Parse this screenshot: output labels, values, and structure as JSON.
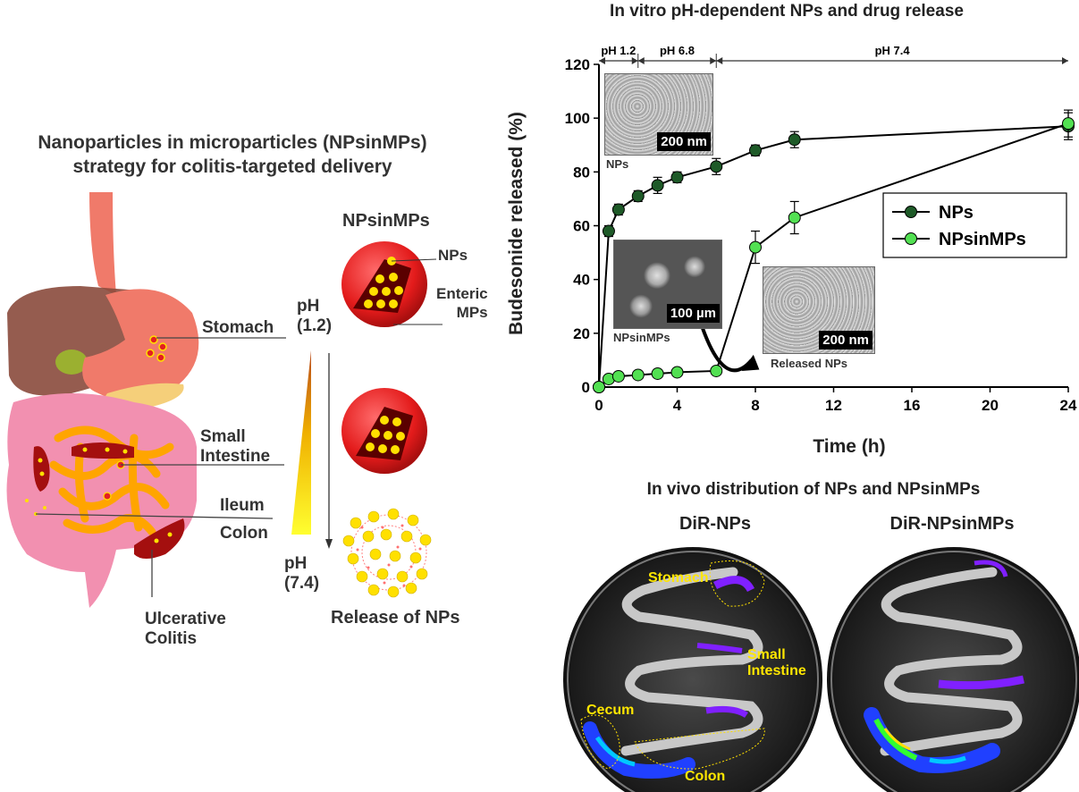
{
  "left": {
    "title_line1": "Nanoparticles in microparticles (NPsinMPs)",
    "title_line2": "strategy for colitis-targeted delivery",
    "organs": {
      "stomach": "Stomach",
      "small_intestine_line1": "Small",
      "small_intestine_line2": "Intestine",
      "ileum": "Ileum",
      "colon": "Colon",
      "ulcerative_line1": "Ulcerative",
      "ulcerative_line2": "Colitis"
    },
    "ph_top_line1": "pH",
    "ph_top_line2": "(1.2)",
    "ph_bottom_line1": "pH",
    "ph_bottom_line2": "(7.4)",
    "particle_title": "NPsinMPs",
    "particle_nps": "NPs",
    "particle_enteric_line1": "Enteric",
    "particle_enteric_line2": "MPs",
    "release_label": "Release of NPs"
  },
  "chart_data": {
    "type": "line",
    "title": "In vitro pH-dependent NPs and drug release",
    "xlabel": "Time (h)",
    "ylabel": "Budesonide released (%)",
    "xlim": [
      0,
      24
    ],
    "ylim": [
      0,
      120
    ],
    "xticks": [
      0,
      4,
      8,
      12,
      16,
      20,
      24
    ],
    "yticks": [
      0,
      20,
      40,
      60,
      80,
      100,
      120
    ],
    "legend_position": "right-middle",
    "ph_segments": [
      {
        "label": "pH 1.2",
        "from": 0,
        "to": 2
      },
      {
        "label": "pH 6.8",
        "from": 2,
        "to": 6
      },
      {
        "label": "pH 7.4",
        "from": 6,
        "to": 24
      }
    ],
    "series": [
      {
        "name": "NPs",
        "color": "#1e5a28",
        "x": [
          0,
          0.5,
          1,
          2,
          3,
          4,
          6,
          8,
          10,
          24
        ],
        "y": [
          0,
          58,
          66,
          71,
          75,
          78,
          82,
          88,
          92,
          97
        ],
        "err": [
          0,
          2,
          2,
          2,
          3,
          2,
          3,
          2,
          3,
          5
        ]
      },
      {
        "name": "NPsinMPs",
        "color": "#52e052",
        "x": [
          0,
          0.5,
          1,
          2,
          3,
          4,
          6,
          8,
          10,
          24
        ],
        "y": [
          0,
          3,
          4,
          4.5,
          5,
          5.5,
          6,
          52,
          63,
          98
        ],
        "err": [
          0,
          1,
          1,
          1,
          1,
          1,
          1,
          6,
          6,
          5
        ]
      }
    ],
    "insets": [
      {
        "scale": "200 nm",
        "caption": "NPs"
      },
      {
        "scale": "100 µm",
        "caption": "NPsinMPs"
      },
      {
        "scale": "200 nm",
        "caption": "Released NPs"
      }
    ]
  },
  "invivo": {
    "title": "In vivo distribution of NPs and NPsinMPs",
    "left_title": "DiR-NPs",
    "right_title": "DiR-NPsinMPs",
    "labels": {
      "stomach": "Stomach",
      "small_line1": "Small",
      "small_line2": "Intestine",
      "cecum": "Cecum",
      "colon": "Colon"
    }
  }
}
